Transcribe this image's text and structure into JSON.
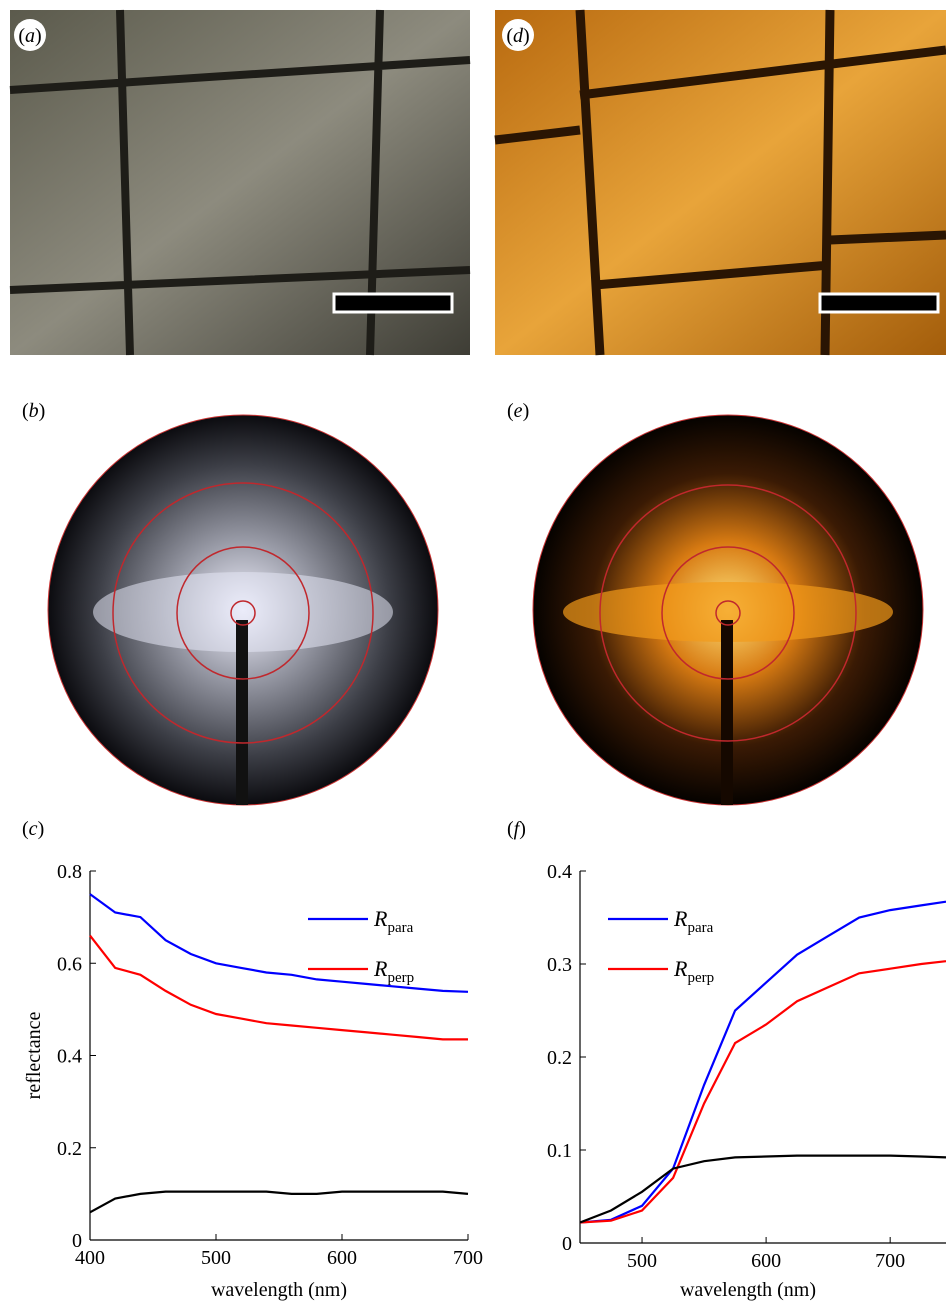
{
  "panels": {
    "a": "(a)",
    "b": "(b)",
    "c": "(c)",
    "d": "(d)",
    "e": "(e)",
    "f": "(f)"
  },
  "chart_data": [
    {
      "type": "line",
      "xlabel": "wavelength (nm)",
      "ylabel": "reflectance",
      "x": [
        400,
        420,
        440,
        460,
        480,
        500,
        520,
        540,
        560,
        580,
        600,
        620,
        640,
        660,
        680,
        700
      ],
      "xlim": [
        400,
        700
      ],
      "xticks": [
        400,
        500,
        600,
        700
      ],
      "ylim": [
        0,
        0.8
      ],
      "yticks": [
        0,
        0.2,
        0.4,
        0.6,
        0.8
      ],
      "legend": "upper right",
      "series": [
        {
          "name": "Rpara",
          "color": "#0000ff",
          "values": [
            0.75,
            0.71,
            0.7,
            0.65,
            0.62,
            0.6,
            0.59,
            0.58,
            0.575,
            0.565,
            0.56,
            0.555,
            0.55,
            0.545,
            0.54,
            0.538
          ]
        },
        {
          "name": "Rperp",
          "color": "#ff0000",
          "values": [
            0.66,
            0.59,
            0.575,
            0.54,
            0.51,
            0.49,
            0.48,
            0.47,
            0.465,
            0.46,
            0.455,
            0.45,
            0.445,
            0.44,
            0.435,
            0.435
          ]
        },
        {
          "color": "#000000",
          "values": [
            0.06,
            0.09,
            0.1,
            0.105,
            0.105,
            0.105,
            0.105,
            0.105,
            0.1,
            0.1,
            0.105,
            0.105,
            0.105,
            0.105,
            0.105,
            0.1
          ]
        }
      ]
    },
    {
      "type": "line",
      "xlabel": "wavelength (nm)",
      "x": [
        450,
        475,
        500,
        525,
        550,
        575,
        600,
        625,
        650,
        675,
        700,
        725,
        745
      ],
      "xlim": [
        450,
        745
      ],
      "xticks": [
        500,
        600,
        700
      ],
      "ylim": [
        0,
        0.4
      ],
      "yticks": [
        0,
        0.1,
        0.2,
        0.3,
        0.4
      ],
      "legend": "upper left",
      "series": [
        {
          "name": "Rpara",
          "color": "#0000ff",
          "values": [
            0.022,
            0.025,
            0.04,
            0.08,
            0.17,
            0.25,
            0.28,
            0.31,
            0.33,
            0.35,
            0.358,
            0.363,
            0.367
          ]
        },
        {
          "name": "Rperp",
          "color": "#ff0000",
          "values": [
            0.022,
            0.024,
            0.035,
            0.07,
            0.15,
            0.215,
            0.235,
            0.26,
            0.275,
            0.29,
            0.295,
            0.3,
            0.303
          ]
        },
        {
          "color": "#000000",
          "values": [
            0.022,
            0.035,
            0.055,
            0.08,
            0.088,
            0.092,
            0.093,
            0.094,
            0.094,
            0.094,
            0.094,
            0.093,
            0.092
          ]
        }
      ]
    }
  ]
}
